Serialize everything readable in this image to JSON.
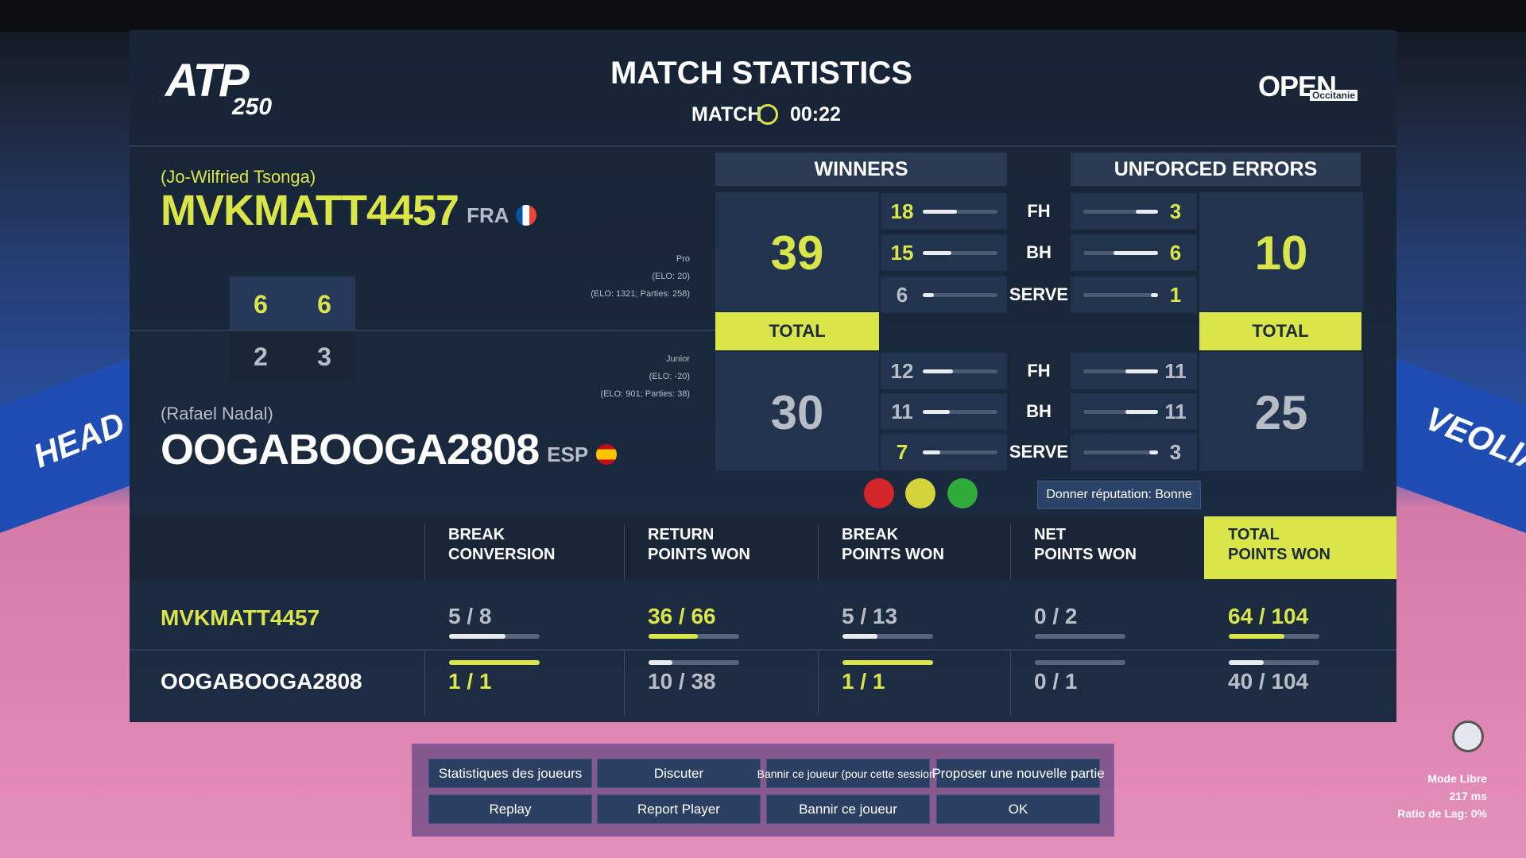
{
  "background": {
    "ads": [
      "HEAD",
      "VEOLIA"
    ]
  },
  "header": {
    "logo_left": "ATP",
    "logo_left_sub": "250",
    "title": "MATCH STATISTICS",
    "match_label": "MATCH",
    "time": "00:22",
    "logo_right": "OPEN",
    "logo_right_sub": "Occitanie"
  },
  "labels": {
    "winners": "WINNERS",
    "unforced_errors": "UNFORCED ERRORS",
    "total": "TOTAL",
    "rows": [
      "FH",
      "BH",
      "SERVE"
    ]
  },
  "players": [
    {
      "character": "(Jo-Wilfried Tsonga)",
      "name": "MVKMATT4457",
      "country": "FRA",
      "level": "Pro",
      "elo": "(ELO: 20)",
      "elo_detail": "(ELO: 1321; Parties: 258)",
      "sets": [
        6,
        6
      ],
      "winners": {
        "total": 39,
        "breakdown": [
          18,
          15,
          6
        ]
      },
      "unforced_errors": {
        "total": 10,
        "breakdown": [
          3,
          6,
          1
        ]
      }
    },
    {
      "character": "(Rafael Nadal)",
      "name": "OOGABOOGA2808",
      "country": "ESP",
      "level": "Junior",
      "elo": "(ELO: -20)",
      "elo_detail": "(ELO: 901; Parties: 38)",
      "sets": [
        2,
        3
      ],
      "winners": {
        "total": 30,
        "breakdown": [
          12,
          11,
          7
        ]
      },
      "unforced_errors": {
        "total": 25,
        "breakdown": [
          11,
          11,
          3
        ]
      }
    }
  ],
  "reputation_button": "Donner réputation: Bonne",
  "stats_table": {
    "columns": [
      [
        "BREAK",
        "CONVERSION"
      ],
      [
        "RETURN",
        "POINTS WON"
      ],
      [
        "BREAK",
        "POINTS WON"
      ],
      [
        "NET",
        "POINTS WON"
      ],
      [
        "TOTAL",
        "POINTS WON"
      ]
    ],
    "rows": [
      [
        "5 / 8",
        "36 / 66",
        "5 / 13",
        "0 / 2",
        "64 / 104"
      ],
      [
        "1 / 1",
        "10 / 38",
        "1 / 1",
        "0 / 1",
        "40 / 104"
      ]
    ]
  },
  "buttons": [
    "Statistiques des joueurs",
    "Discuter",
    "Bannir ce joueur (pour cette session)",
    "Proposer une nouvelle partie",
    "Replay",
    "Report Player",
    "Bannir ce joueur",
    "OK"
  ],
  "status": {
    "mode": "Mode Libre",
    "ping": "217 ms",
    "lag": "Ratio de Lag: 0%"
  }
}
